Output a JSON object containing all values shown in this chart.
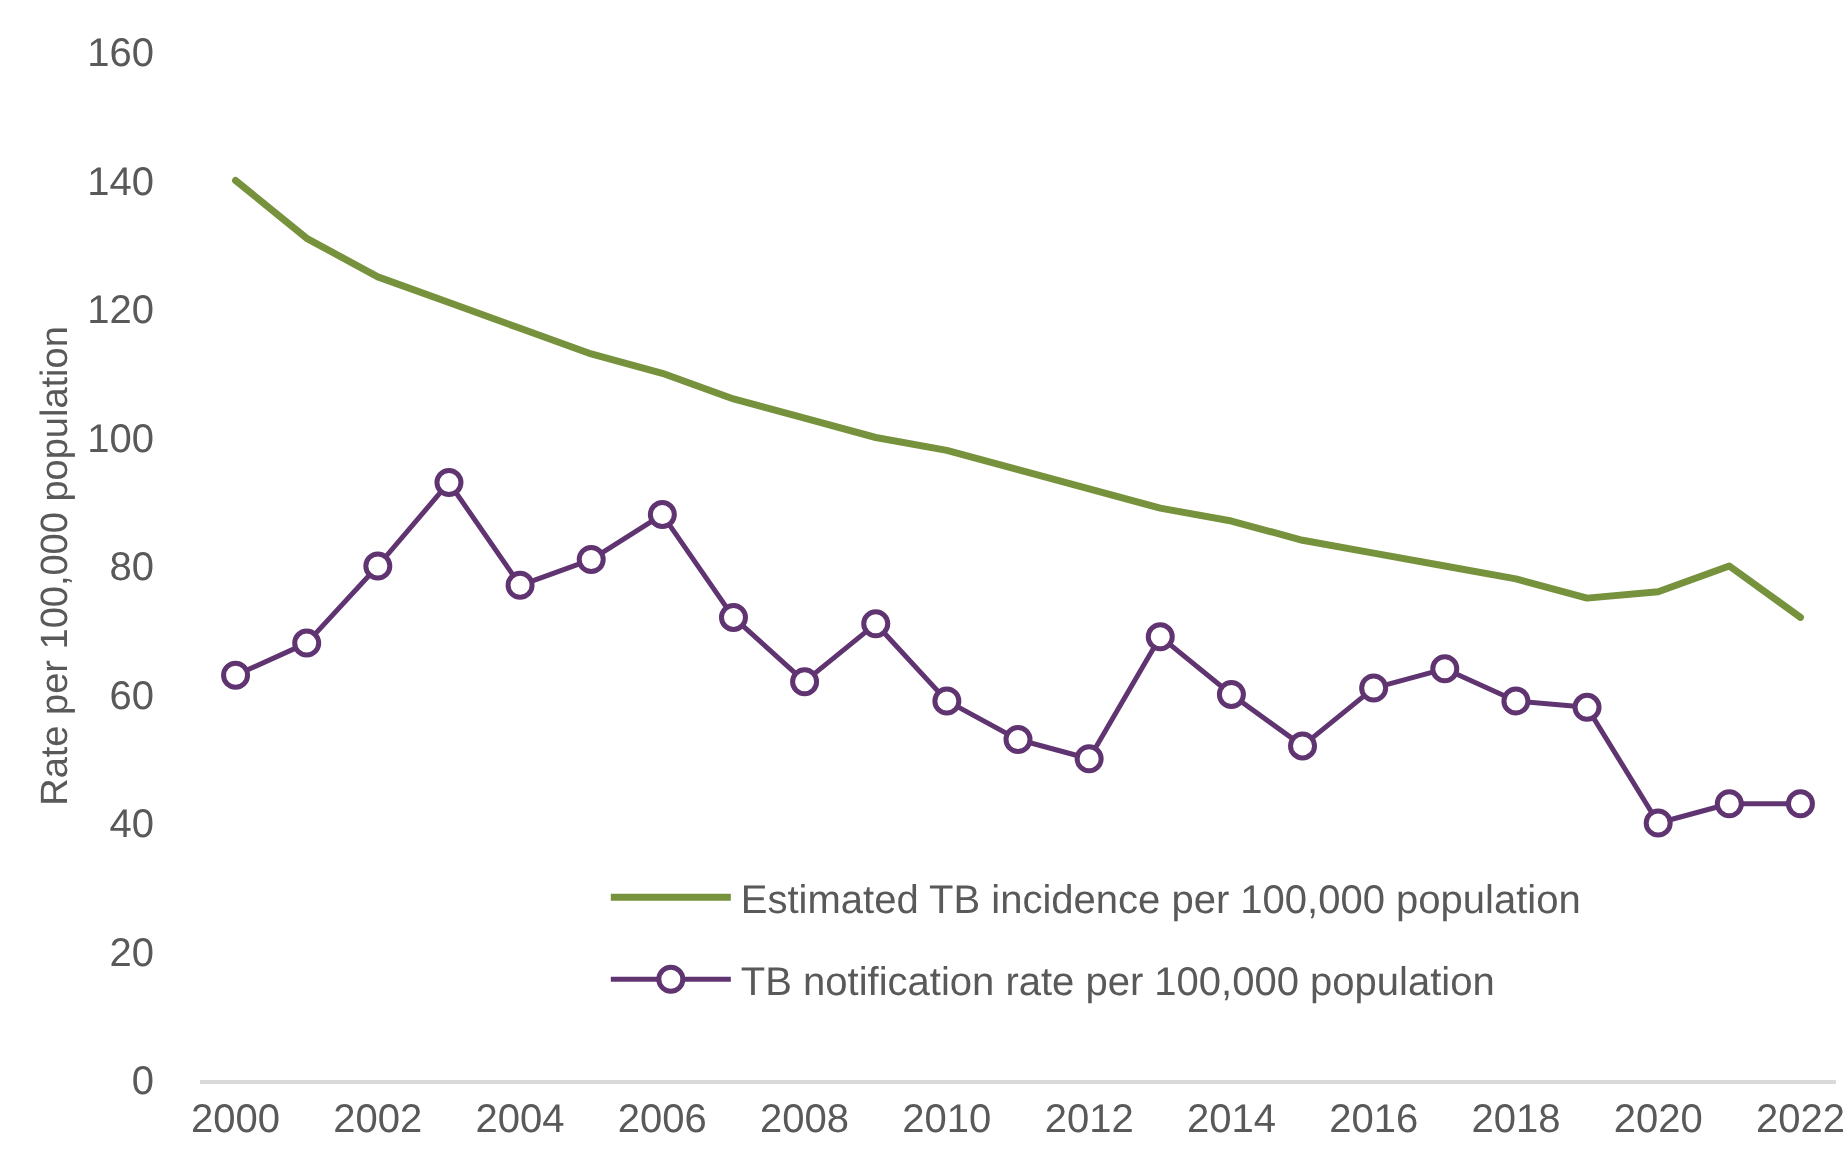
{
  "chart_data": {
    "type": "line",
    "ylabel": "Rate per 100,000 population",
    "x": [
      2000,
      2001,
      2002,
      2003,
      2004,
      2005,
      2006,
      2007,
      2008,
      2009,
      2010,
      2011,
      2012,
      2013,
      2014,
      2015,
      2016,
      2017,
      2018,
      2019,
      2020,
      2021,
      2022
    ],
    "series": [
      {
        "name": "Estimated TB incidence per 100,000 population",
        "color": "#76923c",
        "marker": "none",
        "values": [
          140,
          131,
          125,
          121,
          117,
          113,
          110,
          106,
          103,
          100,
          98,
          95,
          92,
          89,
          87,
          84,
          82,
          80,
          78,
          75,
          76,
          80,
          72
        ]
      },
      {
        "name": "TB notification rate per 100,000 population",
        "color": "#5f3470",
        "marker": "circle",
        "values": [
          63,
          68,
          80,
          93,
          77,
          81,
          88,
          72,
          62,
          71,
          59,
          53,
          50,
          69,
          60,
          52,
          61,
          64,
          59,
          58,
          40,
          43,
          43
        ]
      }
    ],
    "xlim": [
      1999.5,
      2022.5
    ],
    "xticks": [
      2000,
      2002,
      2004,
      2006,
      2008,
      2010,
      2012,
      2014,
      2016,
      2018,
      2020,
      2022
    ],
    "ylim": [
      0,
      160
    ],
    "yticks": [
      0,
      20,
      40,
      60,
      80,
      100,
      120,
      140,
      160
    ],
    "legend": "bottom"
  }
}
